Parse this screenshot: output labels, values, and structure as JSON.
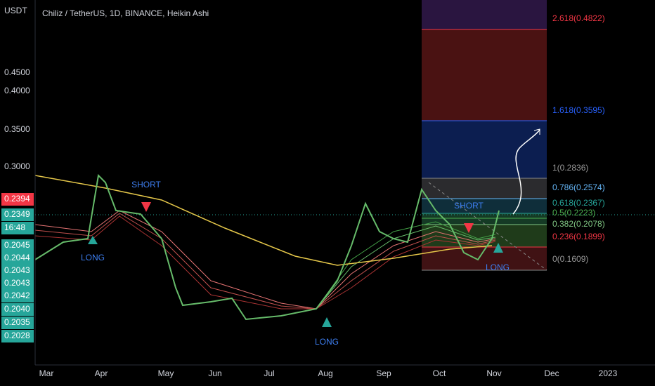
{
  "header": {
    "title": "Chiliz / TetherUS, 1D, BINANCE, Heikin Ashi",
    "currency": "USDT"
  },
  "price_axis": [
    "0.4500",
    "0.4000",
    "0.3500",
    "0.3000"
  ],
  "price_tags": [
    "0.2394",
    "0.2349",
    "16:48",
    "0.2045",
    "0.2044",
    "0.2043",
    "0.2043",
    "0.2042",
    "0.2040",
    "0.2035",
    "0.2028"
  ],
  "time_axis": [
    "Mar",
    "Apr",
    "May",
    "Jun",
    "Jul",
    "Aug",
    "Sep",
    "Oct",
    "Nov",
    "Dec",
    "2023"
  ],
  "fib_levels": [
    "2.618(0.4822)",
    "1.618(0.3595)",
    "1(0.2836)",
    "0.786(0.2574)",
    "0.618(0.2367)",
    "0.5(0.2223)",
    "0.382(0.2078)",
    "0.236(0.1899)",
    "0(0.1609)"
  ],
  "signals": [
    "SHORT",
    "LONG",
    "LONG",
    "SHORT",
    "LONG"
  ]
}
